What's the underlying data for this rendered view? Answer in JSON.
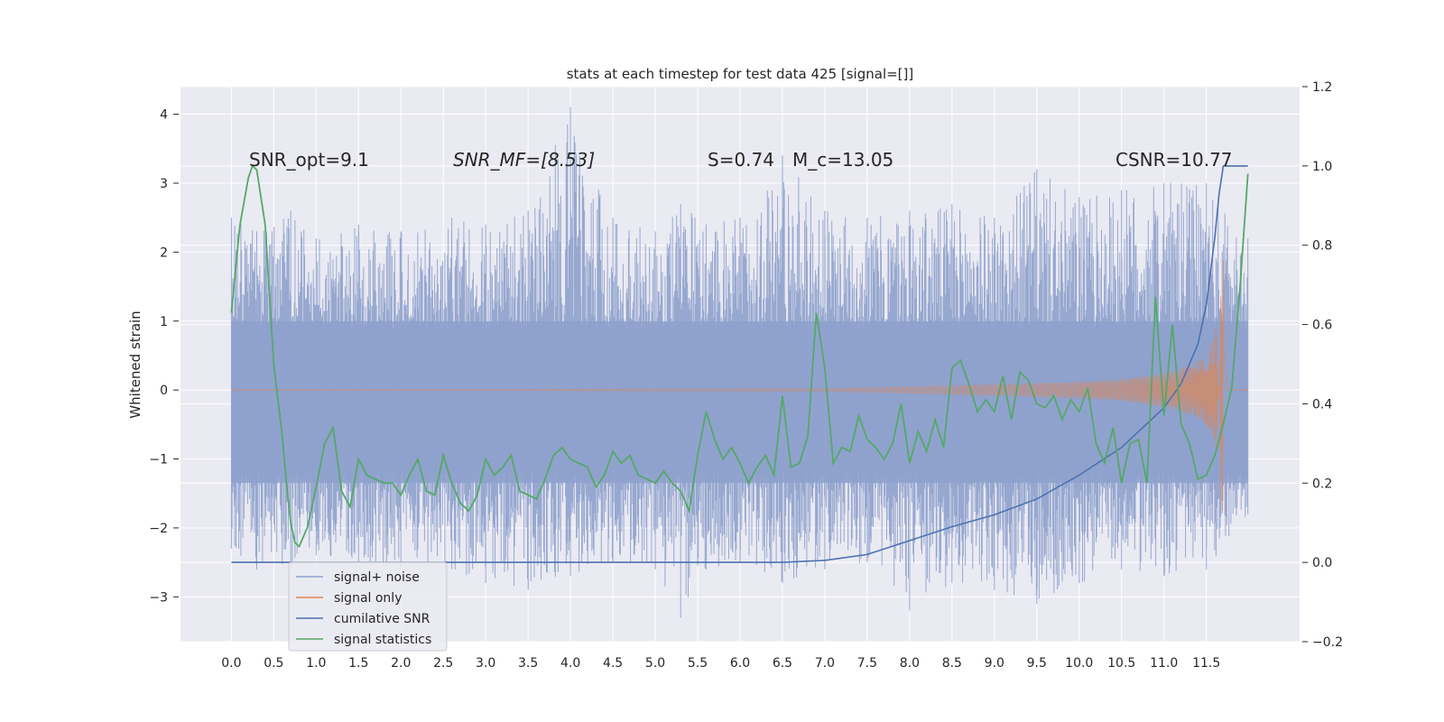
{
  "chart_data": {
    "type": "line",
    "title": "stats at each timestep for test data 425 [signal=[]]",
    "xlabel": "",
    "ylabel": "Whitened strain",
    "ylabel_right": "",
    "xlim": [
      -0.6,
      12.6
    ],
    "ylim": [
      -3.65,
      4.4
    ],
    "ylim_right": [
      -0.2,
      1.2
    ],
    "grid": true,
    "x_ticks": [
      "0.0",
      "0.5",
      "1.0",
      "1.5",
      "2.0",
      "2.5",
      "3.0",
      "3.5",
      "4.0",
      "4.5",
      "5.0",
      "5.5",
      "6.0",
      "6.5",
      "7.0",
      "7.5",
      "8.0",
      "8.5",
      "9.0",
      "9.5",
      "10.0",
      "10.5",
      "11.0",
      "11.5"
    ],
    "y_ticks": [
      4,
      3,
      2,
      1,
      0,
      -1,
      -2,
      -3
    ],
    "y_ticks_right": [
      1.2,
      1.0,
      0.8,
      0.6,
      0.4,
      0.2,
      0.0,
      -0.2
    ],
    "legend_position": "lower-left",
    "annotations": [
      {
        "text": "SNR_opt=9.1",
        "x": 0.2
      },
      {
        "text": "SNR_MF=[8.53]",
        "x": 2.6
      },
      {
        "text": "S=0.74",
        "x": 5.6
      },
      {
        "text": "M_c=13.05",
        "x": 6.6
      },
      {
        "text": "CSNR=10.77",
        "x": 10.4
      }
    ],
    "series": [
      {
        "name": "signal+ noise",
        "axis": "left",
        "color": "#8ea1cc",
        "envelope_peak_x": [
          0.0,
          0.3,
          0.7,
          1.0,
          1.5,
          2.0,
          2.6,
          3.0,
          3.5,
          4.0,
          4.5,
          5.0,
          5.3,
          5.6,
          6.0,
          6.5,
          7.0,
          7.5,
          8.0,
          8.5,
          9.0,
          9.5,
          10.0,
          10.5,
          11.0,
          11.5,
          11.99
        ],
        "envelope_upper": [
          2.5,
          2.3,
          2.6,
          2.2,
          2.4,
          2.3,
          2.5,
          2.4,
          2.6,
          4.1,
          2.5,
          2.3,
          2.7,
          2.4,
          2.5,
          3.4,
          2.6,
          2.5,
          2.6,
          2.7,
          2.5,
          3.2,
          2.8,
          2.9,
          3.0,
          3.0,
          2.2
        ],
        "envelope_lower": [
          -2.3,
          -2.6,
          -2.6,
          -2.4,
          -2.5,
          -2.6,
          -2.6,
          -2.8,
          -2.9,
          -2.7,
          -2.5,
          -2.6,
          -3.3,
          -2.6,
          -2.5,
          -2.8,
          -2.6,
          -2.5,
          -3.2,
          -2.8,
          -2.9,
          -3.1,
          -2.8,
          -2.6,
          -2.7,
          -2.6,
          -1.8
        ]
      },
      {
        "name": "signal only",
        "axis": "left",
        "color": "#dd8452",
        "x": [
          0.0,
          7.0,
          8.0,
          9.0,
          10.0,
          10.5,
          11.0,
          11.3,
          11.5,
          11.6,
          11.65,
          11.7,
          11.75,
          11.99
        ],
        "amplitude": [
          0.0,
          0.02,
          0.05,
          0.08,
          0.12,
          0.16,
          0.25,
          0.35,
          0.5,
          0.8,
          1.3,
          1.9,
          0.0,
          0.0
        ]
      },
      {
        "name": "cumilative SNR",
        "axis": "right",
        "color": "#4c72b0",
        "x": [
          0.0,
          6.5,
          7.0,
          7.5,
          8.0,
          8.5,
          9.0,
          9.5,
          10.0,
          10.5,
          11.0,
          11.2,
          11.4,
          11.5,
          11.6,
          11.65,
          11.7,
          11.99
        ],
        "values": [
          0.0,
          0.0,
          0.005,
          0.02,
          0.055,
          0.09,
          0.12,
          0.16,
          0.22,
          0.29,
          0.39,
          0.45,
          0.55,
          0.65,
          0.82,
          0.93,
          1.0,
          1.0
        ]
      },
      {
        "name": "signal statistics",
        "axis": "right",
        "color": "#55a868",
        "x": [
          0.0,
          0.1,
          0.2,
          0.25,
          0.3,
          0.4,
          0.5,
          0.6,
          0.65,
          0.7,
          0.75,
          0.8,
          0.9,
          1.0,
          1.1,
          1.2,
          1.3,
          1.4,
          1.5,
          1.6,
          1.7,
          1.8,
          1.9,
          2.0,
          2.1,
          2.2,
          2.3,
          2.4,
          2.5,
          2.6,
          2.7,
          2.8,
          2.9,
          3.0,
          3.1,
          3.2,
          3.3,
          3.4,
          3.5,
          3.6,
          3.7,
          3.8,
          3.9,
          4.0,
          4.1,
          4.2,
          4.3,
          4.4,
          4.5,
          4.6,
          4.7,
          4.8,
          4.9,
          5.0,
          5.1,
          5.2,
          5.3,
          5.4,
          5.5,
          5.6,
          5.7,
          5.8,
          5.9,
          6.0,
          6.1,
          6.2,
          6.3,
          6.4,
          6.5,
          6.6,
          6.7,
          6.8,
          6.9,
          7.0,
          7.1,
          7.2,
          7.3,
          7.4,
          7.5,
          7.6,
          7.7,
          7.8,
          7.9,
          8.0,
          8.1,
          8.2,
          8.3,
          8.4,
          8.5,
          8.6,
          8.7,
          8.8,
          8.9,
          9.0,
          9.1,
          9.2,
          9.3,
          9.4,
          9.5,
          9.6,
          9.7,
          9.8,
          9.9,
          10.0,
          10.1,
          10.2,
          10.3,
          10.4,
          10.5,
          10.6,
          10.7,
          10.8,
          10.9,
          11.0,
          11.1,
          11.2,
          11.3,
          11.4,
          11.5,
          11.6,
          11.7,
          11.8,
          11.9,
          11.99
        ],
        "values": [
          0.63,
          0.85,
          0.97,
          1.0,
          0.99,
          0.85,
          0.5,
          0.32,
          0.2,
          0.1,
          0.05,
          0.04,
          0.09,
          0.19,
          0.3,
          0.34,
          0.18,
          0.14,
          0.26,
          0.22,
          0.21,
          0.2,
          0.2,
          0.17,
          0.22,
          0.26,
          0.18,
          0.17,
          0.27,
          0.2,
          0.15,
          0.13,
          0.17,
          0.26,
          0.22,
          0.24,
          0.27,
          0.18,
          0.17,
          0.16,
          0.21,
          0.27,
          0.29,
          0.26,
          0.25,
          0.24,
          0.19,
          0.22,
          0.28,
          0.25,
          0.27,
          0.22,
          0.21,
          0.2,
          0.23,
          0.2,
          0.18,
          0.13,
          0.27,
          0.38,
          0.31,
          0.26,
          0.29,
          0.25,
          0.2,
          0.24,
          0.27,
          0.22,
          0.42,
          0.24,
          0.25,
          0.32,
          0.63,
          0.49,
          0.25,
          0.29,
          0.28,
          0.37,
          0.31,
          0.29,
          0.26,
          0.3,
          0.4,
          0.25,
          0.33,
          0.28,
          0.36,
          0.29,
          0.49,
          0.51,
          0.45,
          0.38,
          0.41,
          0.38,
          0.47,
          0.36,
          0.48,
          0.46,
          0.4,
          0.39,
          0.42,
          0.36,
          0.41,
          0.38,
          0.44,
          0.3,
          0.25,
          0.34,
          0.2,
          0.3,
          0.31,
          0.2,
          0.67,
          0.37,
          0.6,
          0.35,
          0.3,
          0.21,
          0.22,
          0.27,
          0.35,
          0.44,
          0.7,
          0.98
        ]
      }
    ]
  }
}
